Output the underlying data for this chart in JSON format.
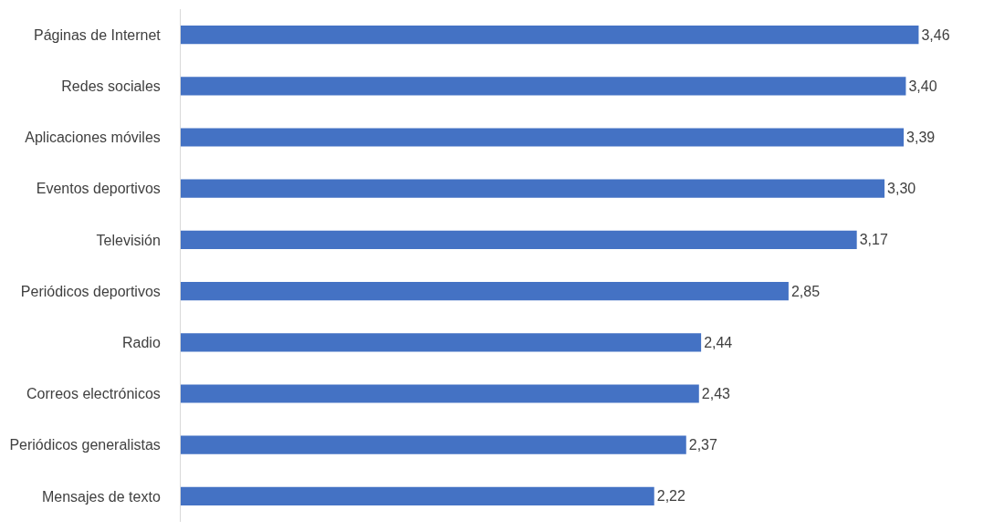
{
  "chart_data": {
    "type": "bar",
    "orientation": "horizontal",
    "color": "#4472c4",
    "categories": [
      "Páginas de Internet",
      "Redes sociales",
      "Aplicaciones móviles",
      "Eventos deportivos",
      "Televisión",
      "Periódicos deportivos",
      "Radio",
      "Correos electrónicos",
      "Periódicos generalistas",
      "Mensajes de texto"
    ],
    "values": [
      3.46,
      3.4,
      3.39,
      3.3,
      3.17,
      2.85,
      2.44,
      2.43,
      2.37,
      2.22
    ],
    "value_labels": [
      "3,46",
      "3,40",
      "3,39",
      "3,30",
      "3,17",
      "2,85",
      "2,44",
      "2,43",
      "2,37",
      "2,22"
    ],
    "tick_labels": "y"
  }
}
